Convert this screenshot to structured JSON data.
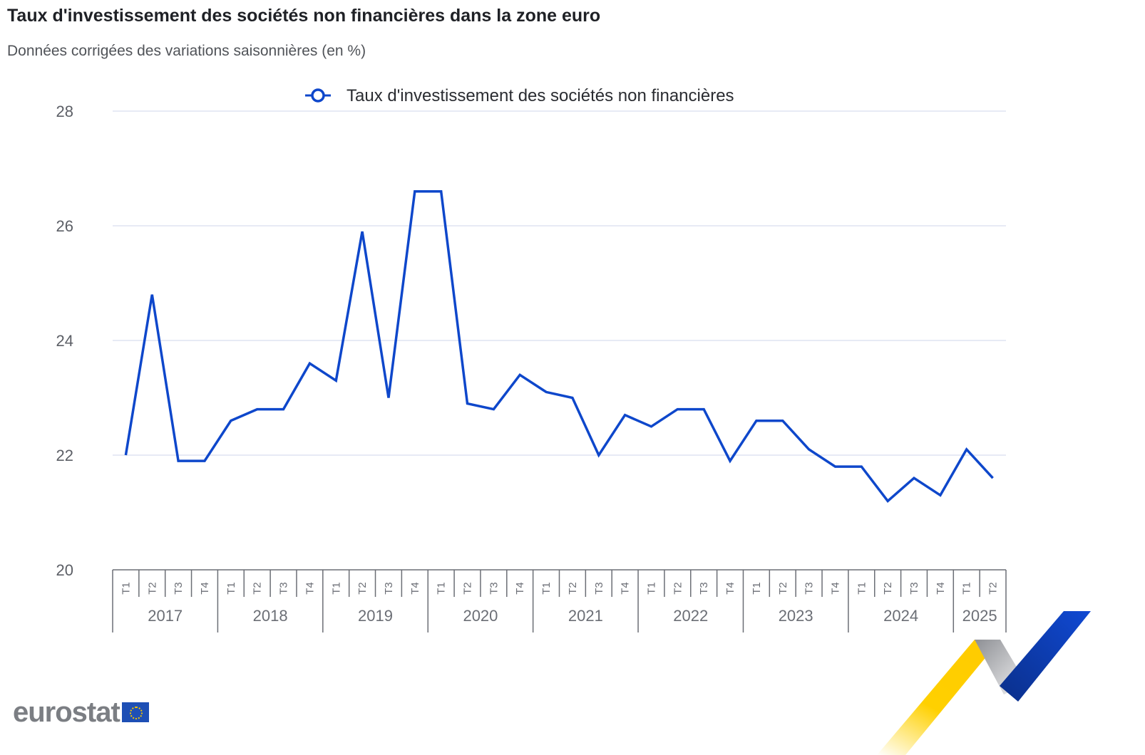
{
  "header": {
    "title": "Taux d'investissement des sociétés non financières dans la zone euro",
    "subtitle": "Données corrigées des variations saisonnières (en %)"
  },
  "legend": {
    "label": "Taux d'investissement des sociétés non financières",
    "icon": "line-circle-marker-icon",
    "color": "#0e47cb"
  },
  "y_axis": {
    "ticks": [
      "28",
      "26",
      "24",
      "22",
      "20"
    ]
  },
  "x_axis": {
    "quarters": [
      "T1",
      "T2",
      "T3",
      "T4",
      "T1",
      "T2",
      "T3",
      "T4",
      "T1",
      "T2",
      "T3",
      "T4",
      "T1",
      "T2",
      "T3",
      "T4",
      "T1",
      "T2",
      "T3",
      "T4",
      "T1",
      "T2",
      "T3",
      "T4",
      "T1",
      "T2",
      "T3",
      "T4",
      "T1",
      "T2",
      "T3",
      "T4",
      "T1",
      "T2"
    ],
    "years": [
      "2017",
      "2018",
      "2019",
      "2020",
      "2021",
      "2022",
      "2023",
      "2024",
      "2025"
    ]
  },
  "branding": {
    "logo_text": "eurostat",
    "flag_icon": "eu-flag-icon"
  },
  "chart_data": {
    "type": "line",
    "title": "Taux d'investissement des sociétés non financières dans la zone euro",
    "subtitle": "Données corrigées des variations saisonnières (en %)",
    "xlabel": "",
    "ylabel": "",
    "ylim": [
      20,
      28
    ],
    "yticks": [
      20,
      22,
      24,
      26,
      28
    ],
    "grid": true,
    "legend_position": "top",
    "x": [
      "2017-T1",
      "2017-T2",
      "2017-T3",
      "2017-T4",
      "2018-T1",
      "2018-T2",
      "2018-T3",
      "2018-T4",
      "2019-T1",
      "2019-T2",
      "2019-T3",
      "2019-T4",
      "2020-T1",
      "2020-T2",
      "2020-T3",
      "2020-T4",
      "2021-T1",
      "2021-T2",
      "2021-T3",
      "2021-T4",
      "2022-T1",
      "2022-T2",
      "2022-T3",
      "2022-T4",
      "2023-T1",
      "2023-T2",
      "2023-T3",
      "2023-T4",
      "2024-T1",
      "2024-T2",
      "2024-T3",
      "2024-T4",
      "2025-T1",
      "2025-T2"
    ],
    "series": [
      {
        "name": "Taux d'investissement des sociétés non financières",
        "color": "#0e47cb",
        "values": [
          22.0,
          24.8,
          21.9,
          21.9,
          22.6,
          22.8,
          22.8,
          23.6,
          23.3,
          25.9,
          23.0,
          26.6,
          26.6,
          22.9,
          22.8,
          23.4,
          23.1,
          23.0,
          22.0,
          22.7,
          22.5,
          22.8,
          22.8,
          21.9,
          22.6,
          22.6,
          22.1,
          21.8,
          21.8,
          21.2,
          21.6,
          21.3,
          22.1,
          21.6
        ]
      }
    ]
  }
}
